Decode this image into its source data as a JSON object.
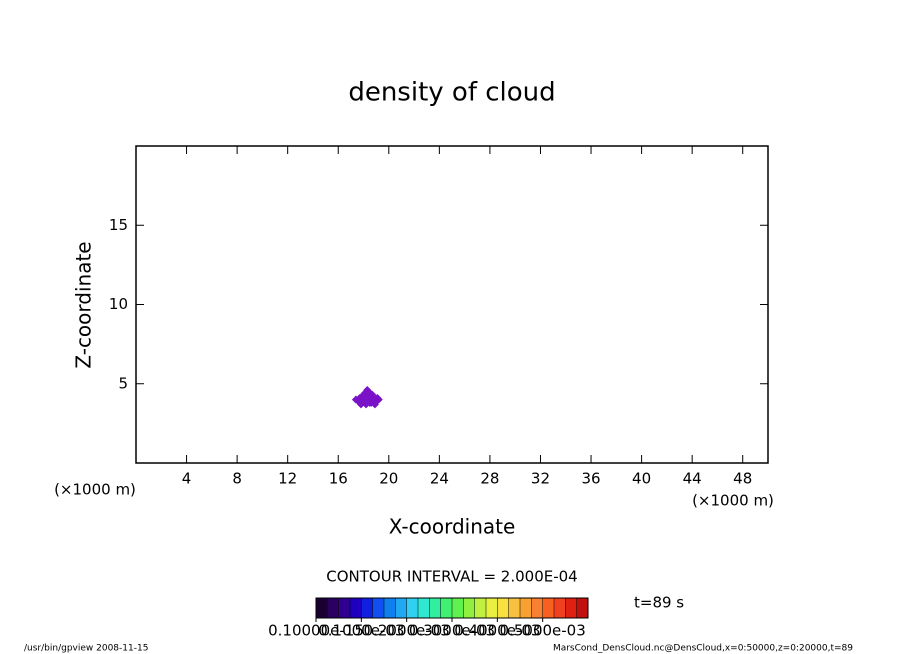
{
  "chart_data": {
    "type": "contour",
    "title": "density of cloud",
    "x_label": "X-coordinate",
    "y_label": "Z-coordinate",
    "x_unit": "(×1000 m)",
    "y_unit": "(×1000 m)",
    "xlim": [
      0,
      50
    ],
    "ylim": [
      0,
      20
    ],
    "xticks": [
      4,
      8,
      12,
      16,
      20,
      24,
      28,
      32,
      36,
      40,
      44,
      48
    ],
    "yticks": [
      5,
      10,
      15
    ],
    "series": [
      {
        "name": "DensCloud",
        "color": "#7a12c8",
        "x": [
          17.4,
          17.7,
          17.9,
          18.0,
          18.2,
          18.3,
          18.5,
          18.6,
          18.8,
          19.0,
          19.2,
          17.8,
          18.1,
          18.4,
          18.7,
          18.9,
          18.0,
          18.3,
          18.6,
          18.2,
          18.4,
          17.6,
          19.1,
          18.5,
          18.1
        ],
        "values": [
          4.0,
          4.1,
          3.9,
          4.3,
          4.0,
          4.6,
          4.2,
          3.8,
          4.1,
          3.9,
          4.0,
          3.7,
          4.4,
          3.9,
          4.3,
          3.7,
          4.0,
          4.2,
          4.0,
          3.7,
          4.5,
          3.9,
          4.1,
          3.8,
          4.1
        ]
      }
    ],
    "contour_interval": "CONTOUR INTERVAL = 2.000E-04",
    "time_label": "t=89 s",
    "colorbar": {
      "lim": [
        0,
        0.0006
      ],
      "ticks": [
        {
          "value": 1e-16,
          "label": "0.10000e-15"
        },
        {
          "value": 0.0001,
          "label": "0.1000e-03"
        },
        {
          "value": 0.0002,
          "label": "0.2000e-03"
        },
        {
          "value": 0.0003,
          "label": "0.3000e-03"
        },
        {
          "value": 0.0004,
          "label": "0.4000e-03"
        },
        {
          "value": 0.0005,
          "label": "0.5000e-03"
        }
      ],
      "colors": [
        "#1a0030",
        "#2a0060",
        "#300090",
        "#2000c0",
        "#1020e0",
        "#1050f0",
        "#1080f0",
        "#20a8f0",
        "#30d0f0",
        "#30e8d0",
        "#30f0a0",
        "#40f070",
        "#60f050",
        "#90f040",
        "#c0f040",
        "#e8f040",
        "#f8e040",
        "#f8c040",
        "#f8a030",
        "#f88030",
        "#f86020",
        "#f04020",
        "#e02010",
        "#c01010"
      ]
    },
    "footer_left": "/usr/bin/gpview   2008-11-15",
    "footer_right": "MarsCond_DensCloud.nc@DensCloud,x=0:50000,z=0:20000,t=89"
  }
}
